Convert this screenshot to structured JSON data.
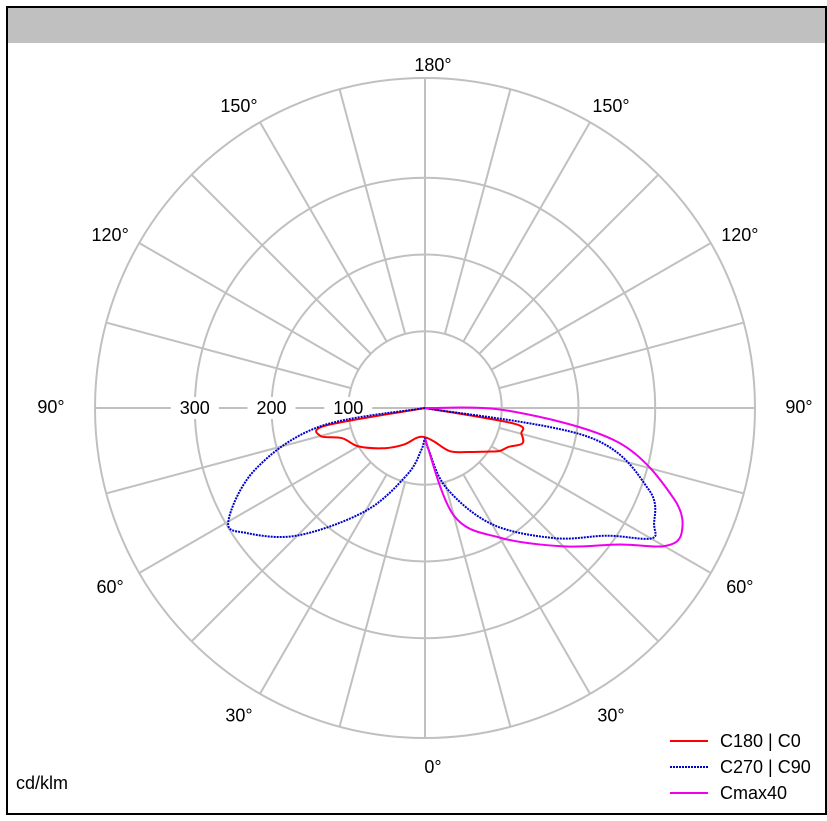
{
  "unit_label": "cd/klm",
  "chart_data": {
    "type": "polar",
    "radial_unit": "cd/klm",
    "radial_ticks": [
      100,
      200,
      300
    ],
    "radial_max": 430,
    "angle_labels": {
      "bottom": "0°",
      "top": "180°",
      "left": [
        "30°",
        "60°",
        "90°",
        "120°",
        "150°"
      ],
      "right": [
        "30°",
        "60°",
        "90°",
        "120°",
        "150°"
      ]
    },
    "angle_label_values": [
      30,
      60,
      90,
      120,
      150
    ],
    "grid": true,
    "legend_position": "bottom-right",
    "series": [
      {
        "name": "C180 | C0",
        "color": "#ff0000",
        "dash": "solid",
        "points": [
          [
            -90,
            0
          ],
          [
            -80,
            130
          ],
          [
            -75,
            141
          ],
          [
            -70,
            115
          ],
          [
            -60,
            100
          ],
          [
            -45,
            74
          ],
          [
            -30,
            55
          ],
          [
            -15,
            40
          ],
          [
            0,
            38
          ],
          [
            15,
            45
          ],
          [
            30,
            65
          ],
          [
            45,
            81
          ],
          [
            55,
            99
          ],
          [
            60,
            112
          ],
          [
            65,
            120
          ],
          [
            70,
            135
          ],
          [
            75,
            130
          ],
          [
            80,
            118
          ],
          [
            90,
            0
          ]
        ]
      },
      {
        "name": "C270 | C90",
        "color": "#0000cc",
        "dash": "dotted",
        "points": [
          [
            -90,
            0
          ],
          [
            -80,
            140
          ],
          [
            -70,
            236
          ],
          [
            -60,
            296
          ],
          [
            -55,
            284
          ],
          [
            -45,
            235
          ],
          [
            -30,
            155
          ],
          [
            -15,
            90
          ],
          [
            -5,
            55
          ],
          [
            0,
            40
          ],
          [
            5,
            55
          ],
          [
            15,
            108
          ],
          [
            30,
            175
          ],
          [
            45,
            240
          ],
          [
            55,
            290
          ],
          [
            60,
            340
          ],
          [
            63,
            335
          ],
          [
            70,
            310
          ],
          [
            80,
            216
          ],
          [
            90,
            0
          ]
        ]
      },
      {
        "name": "Cmax40",
        "color": "#ee00ee",
        "dash": "solid",
        "points": [
          [
            0,
            40
          ],
          [
            15,
            145
          ],
          [
            30,
            195
          ],
          [
            45,
            255
          ],
          [
            55,
            310
          ],
          [
            60,
            360
          ],
          [
            64,
            372
          ],
          [
            70,
            345
          ],
          [
            80,
            255
          ],
          [
            88,
            110
          ],
          [
            90,
            0
          ]
        ]
      }
    ]
  }
}
